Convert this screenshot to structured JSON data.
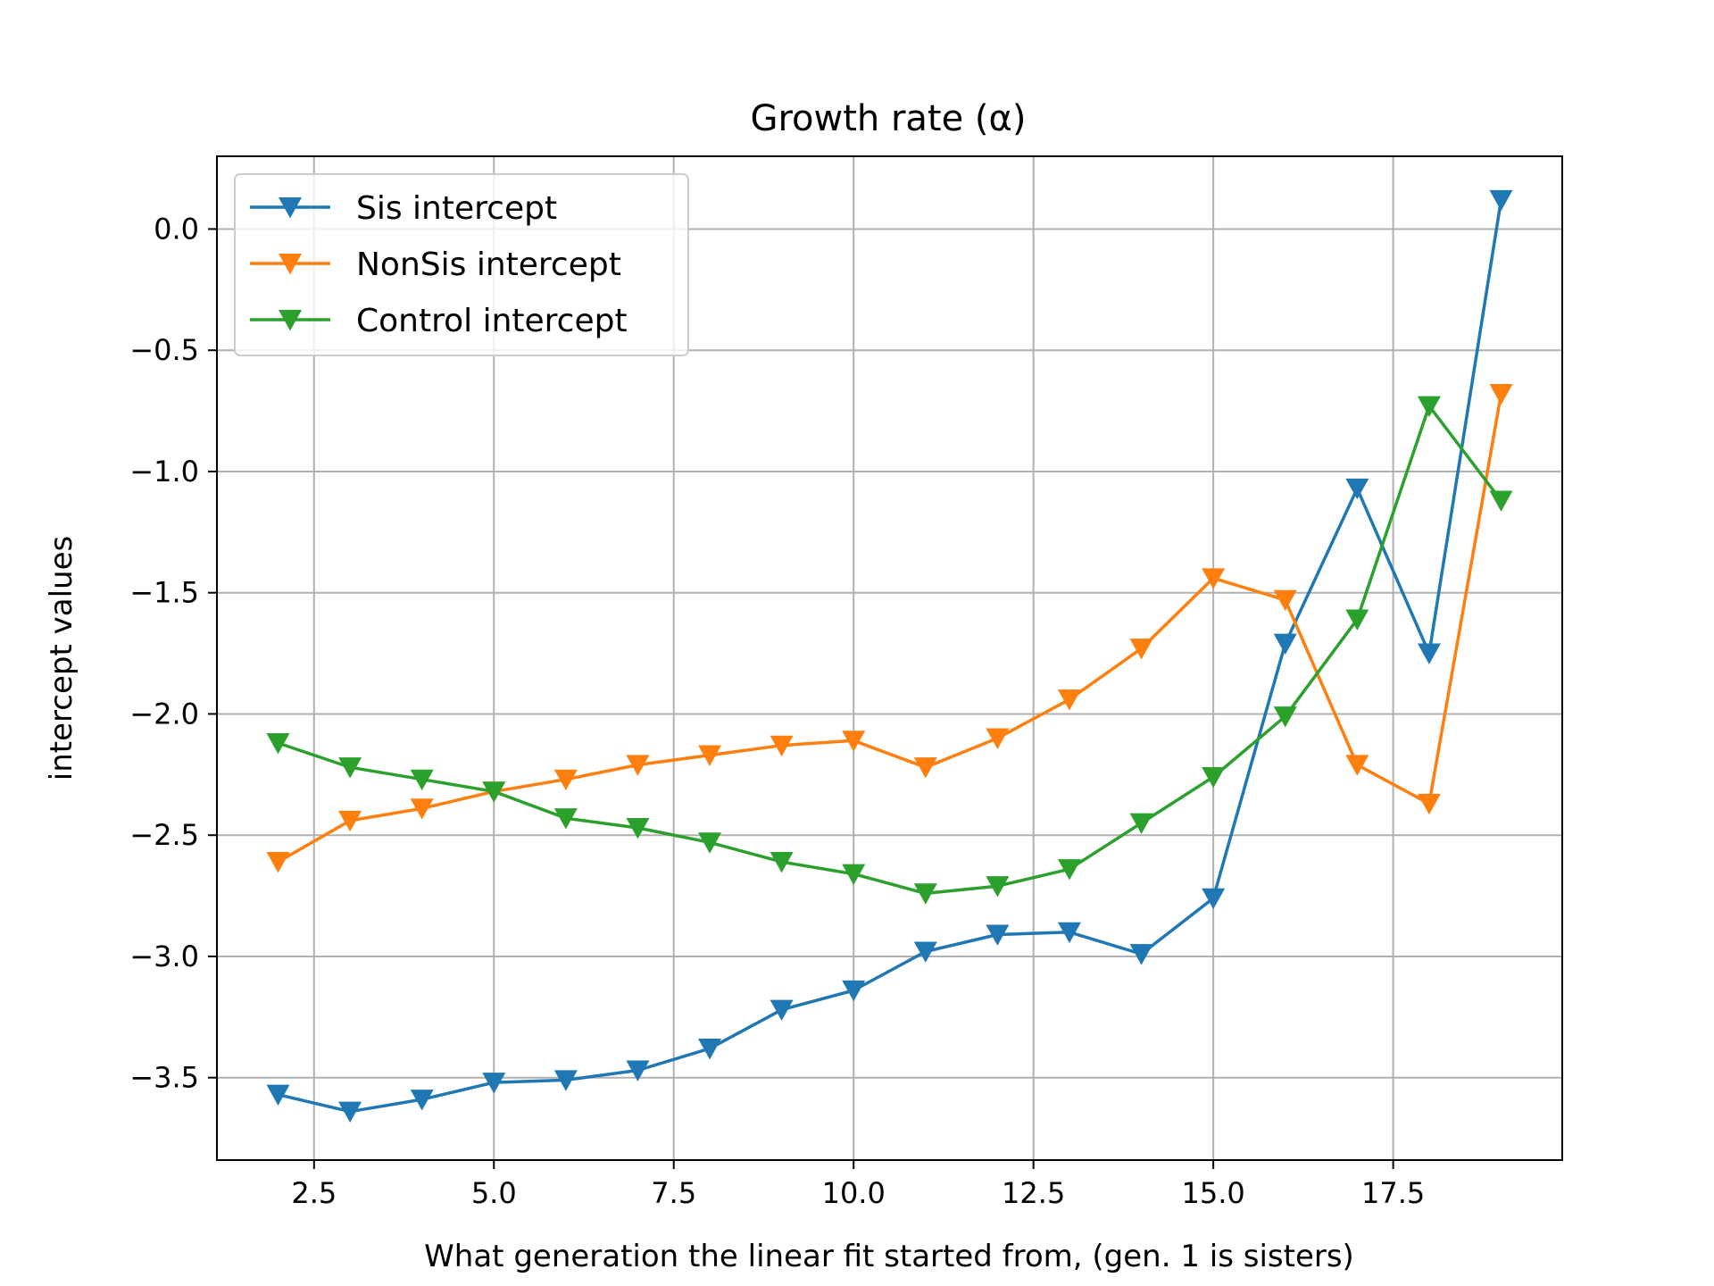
{
  "chart_data": {
    "type": "line",
    "title": "Growth rate (α)",
    "xlabel": "What generation the linear fit started from, (gen. 1 is sisters)",
    "ylabel": "intercept values",
    "xlim": [
      1.15,
      19.85
    ],
    "ylim": [
      -3.84,
      0.3
    ],
    "xticks": [
      2.5,
      5.0,
      7.5,
      10.0,
      12.5,
      15.0,
      17.5
    ],
    "xtick_labels": [
      "2.5",
      "5.0",
      "7.5",
      "10.0",
      "12.5",
      "15.0",
      "17.5"
    ],
    "yticks": [
      0.0,
      -0.5,
      -1.0,
      -1.5,
      -2.0,
      -2.5,
      -3.0,
      -3.5
    ],
    "ytick_labels": [
      "0.0",
      "−0.5",
      "−1.0",
      "−1.5",
      "−2.0",
      "−2.5",
      "−3.0",
      "−3.5"
    ],
    "grid": true,
    "legend_position": "top-left",
    "marker": "triangle-down",
    "x": [
      2,
      3,
      4,
      5,
      6,
      7,
      8,
      9,
      10,
      11,
      12,
      13,
      14,
      15,
      16,
      17,
      18,
      19
    ],
    "series": [
      {
        "name": "Sis intercept",
        "color": "#1f77b4",
        "values": [
          -3.57,
          -3.64,
          -3.59,
          -3.52,
          -3.51,
          -3.47,
          -3.38,
          -3.22,
          -3.14,
          -2.98,
          -2.91,
          -2.9,
          -2.99,
          -2.76,
          -1.71,
          -1.07,
          -1.75,
          0.12
        ]
      },
      {
        "name": "NonSis intercept",
        "color": "#ff7f0e",
        "values": [
          -2.61,
          -2.44,
          -2.39,
          -2.32,
          -2.27,
          -2.21,
          -2.17,
          -2.13,
          -2.11,
          -2.22,
          -2.1,
          -1.94,
          -1.73,
          -1.44,
          -1.53,
          -2.21,
          -2.37,
          -0.68
        ]
      },
      {
        "name": "Control intercept",
        "color": "#2ca02c",
        "values": [
          -2.12,
          -2.22,
          -2.27,
          -2.32,
          -2.43,
          -2.47,
          -2.53,
          -2.61,
          -2.66,
          -2.74,
          -2.71,
          -2.64,
          -2.45,
          -2.26,
          -2.01,
          -1.61,
          -0.73,
          -1.12
        ]
      }
    ]
  }
}
